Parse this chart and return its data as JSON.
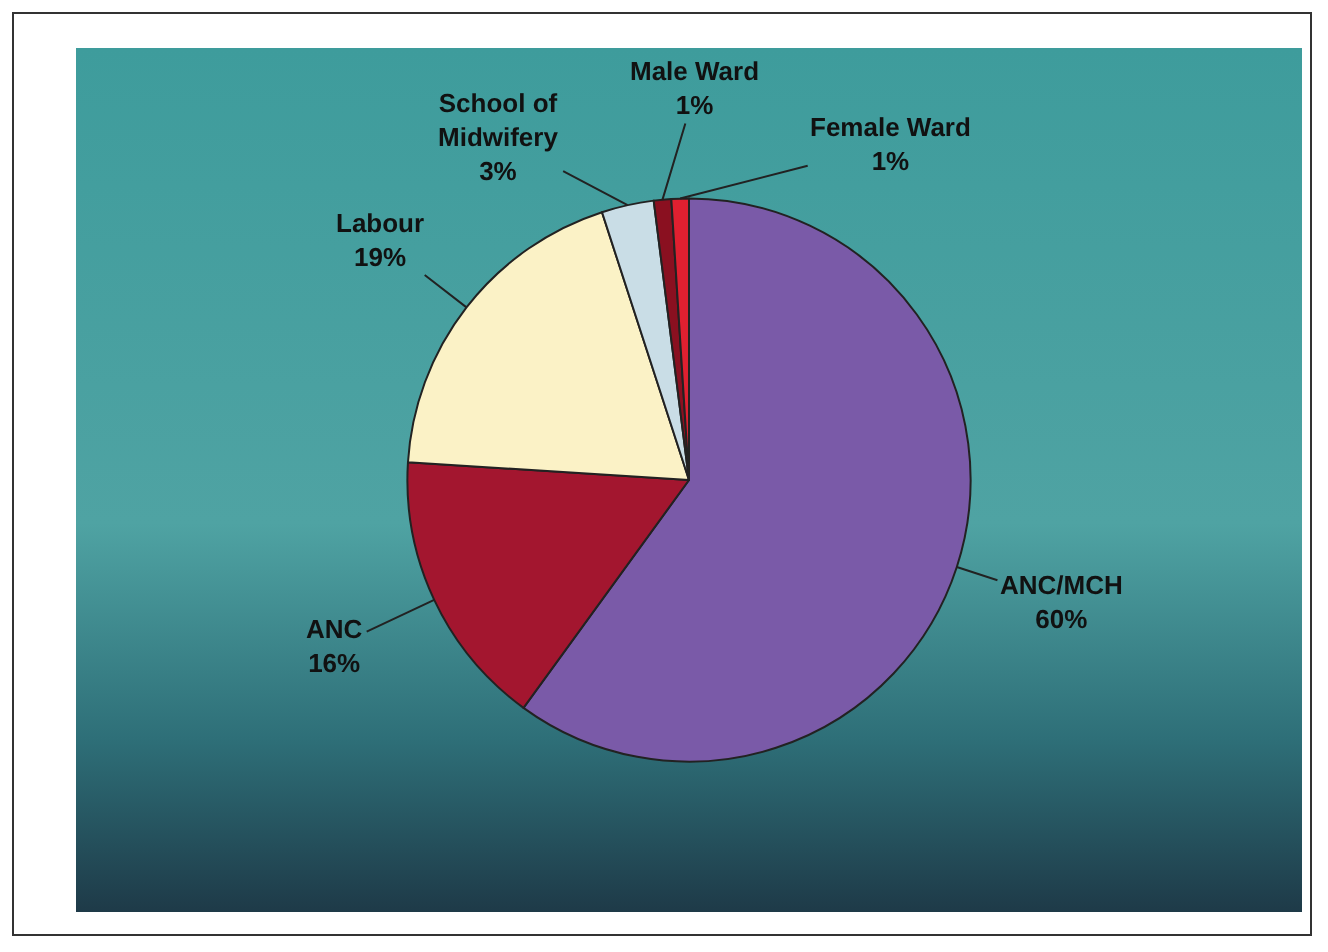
{
  "chart_data": {
    "type": "pie",
    "categories": [
      "ANC/MCH",
      "ANC",
      "Labour",
      "School of Midwifery",
      "Male Ward",
      "Female Ward"
    ],
    "values": [
      60,
      16,
      19,
      3,
      1,
      1
    ],
    "value_labels": [
      "60%",
      "16%",
      "19%",
      "3%",
      "1%",
      "1%"
    ],
    "colors": [
      "#7a5aa8",
      "#a3162f",
      "#fbf2c6",
      "#c9dde6",
      "#8a1020",
      "#e02030"
    ],
    "legend": false
  }
}
